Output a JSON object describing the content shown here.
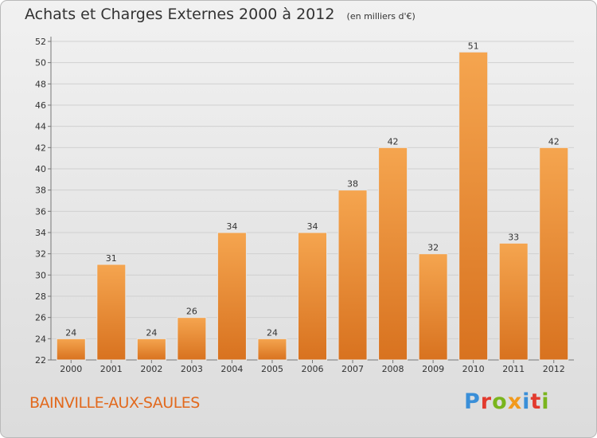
{
  "header": {
    "title": "Achats et Charges Externes 2000 à 2012",
    "unit": "(en milliers d'€)"
  },
  "footer": {
    "town": "BAINVILLE-AUX-SAULES",
    "logo_letters": [
      "P",
      "r",
      "o",
      "x",
      "i",
      "t",
      "i"
    ],
    "logo_colors": [
      "#3a8fd8",
      "#e23a2e",
      "#7ab51d",
      "#f29a1d",
      "#3a8fd8",
      "#e23a2e",
      "#7ab51d"
    ]
  },
  "colors": {
    "bar_light": "#f5a54f",
    "bar_dark": "#d8721f",
    "text": "#333333",
    "grid": "#d0d0d0"
  },
  "chart_data": {
    "type": "bar",
    "title": "Achats et Charges Externes 2000 à 2012",
    "subtitle": "(en milliers d'€)",
    "categories": [
      "2000",
      "2001",
      "2002",
      "2003",
      "2004",
      "2005",
      "2006",
      "2007",
      "2008",
      "2009",
      "2010",
      "2011",
      "2012"
    ],
    "values": [
      24,
      31,
      24,
      26,
      34,
      24,
      34,
      38,
      42,
      32,
      51,
      33,
      42
    ],
    "ylim": [
      22,
      52
    ],
    "yticks": [
      22,
      24,
      26,
      28,
      30,
      32,
      34,
      36,
      38,
      40,
      42,
      44,
      46,
      48,
      50,
      52
    ],
    "grid": true,
    "data_labels": true
  }
}
